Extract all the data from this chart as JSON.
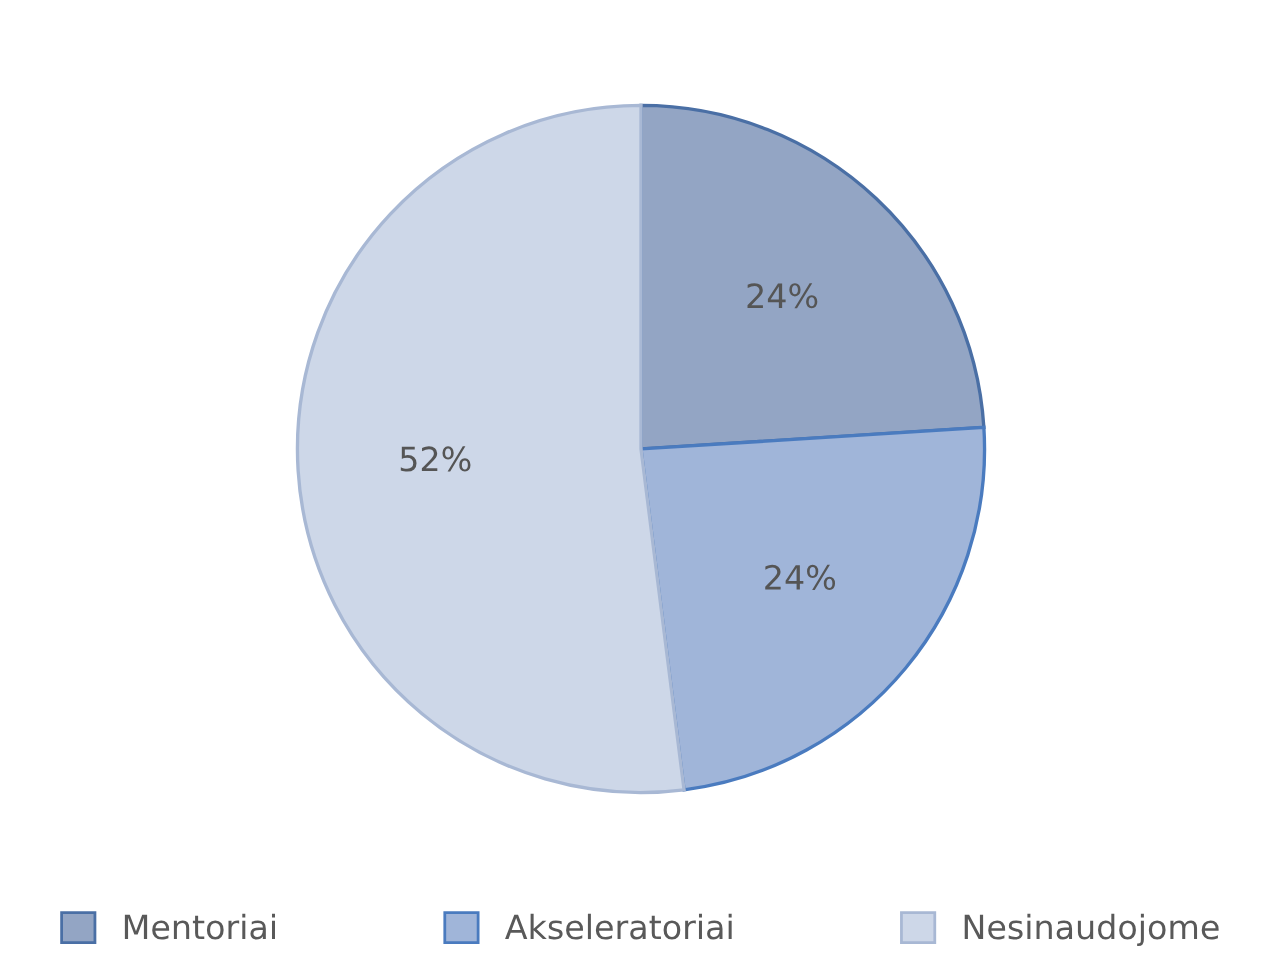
{
  "chart_data": {
    "type": "pie",
    "categories": [
      "Mentoriai",
      "Akseleratoriai",
      "Nesinaudojome"
    ],
    "values": [
      24,
      24,
      52
    ],
    "colors": [
      "#93a5c4",
      "#a0b5d9",
      "#cdd7e8"
    ],
    "value_labels": [
      "24%",
      "24%",
      "52%"
    ],
    "legend": "bottom"
  }
}
